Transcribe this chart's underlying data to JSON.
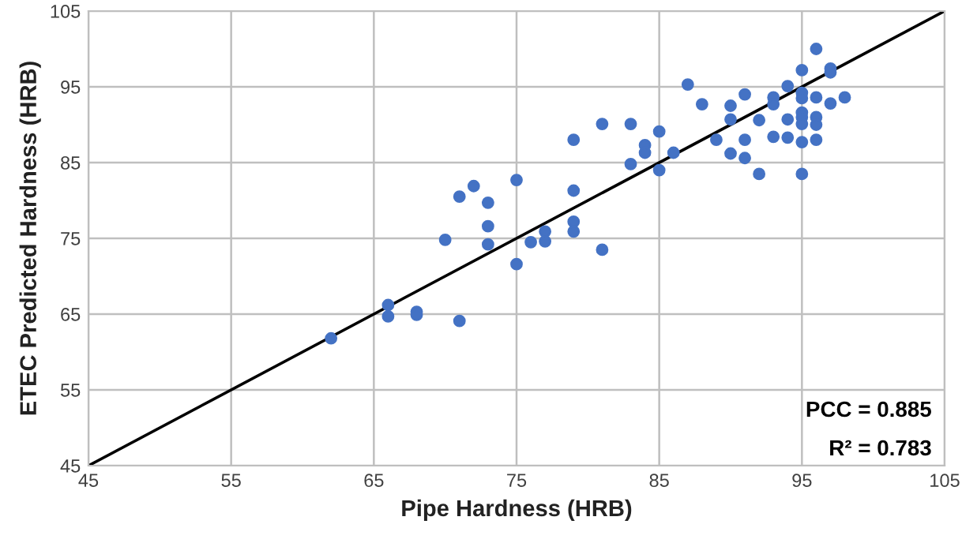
{
  "chart_data": {
    "type": "scatter",
    "xlabel": "Pipe Hardness (HRB)",
    "ylabel": "ETEC Predicted Hardness (HRB)",
    "xlim": [
      45,
      105
    ],
    "ylim": [
      45,
      105
    ],
    "xticks": [
      45,
      55,
      65,
      75,
      85,
      95,
      105
    ],
    "yticks": [
      45,
      55,
      65,
      75,
      85,
      95,
      105
    ],
    "grid": true,
    "marker": "circle",
    "series": [
      {
        "color": "#4472c4",
        "x": [
          62,
          66,
          66,
          68,
          68,
          70,
          71,
          71,
          72,
          73,
          73,
          73,
          75,
          75,
          76,
          77,
          77,
          79,
          79,
          79,
          79,
          81,
          81,
          83,
          83,
          84,
          84,
          85,
          85,
          86,
          87,
          88,
          89,
          90,
          90,
          90,
          91,
          91,
          91,
          92,
          92,
          93,
          93,
          93,
          94,
          94,
          94,
          95,
          95,
          95,
          95,
          95,
          95,
          95,
          95,
          96,
          96,
          96,
          96,
          96,
          97,
          97,
          97,
          98
        ],
        "values": [
          61.8,
          66.2,
          64.7,
          65.3,
          64.9,
          74.8,
          80.5,
          64.1,
          81.9,
          79.7,
          76.6,
          74.2,
          82.7,
          71.6,
          74.5,
          75.9,
          74.6,
          88,
          81.3,
          77.2,
          75.9,
          90.1,
          73.5,
          90.1,
          84.8,
          87.3,
          86.3,
          89.1,
          84,
          86.3,
          95.3,
          92.7,
          88,
          92.5,
          90.7,
          86.2,
          94,
          88,
          85.6,
          90.6,
          83.5,
          93.6,
          92.7,
          88.4,
          95.1,
          90.7,
          88.3,
          97.2,
          94.2,
          93.5,
          91.6,
          91,
          90.1,
          87.7,
          83.5,
          100,
          93.6,
          91,
          90,
          88,
          97.4,
          96.9,
          92.8,
          93.6
        ]
      },
      {
        "type": "line",
        "color": "#000000",
        "x": [
          45,
          105
        ],
        "values": [
          45,
          105
        ],
        "marker": "none",
        "line_style": "solid"
      }
    ],
    "annotations": [
      "PCC = 0.885",
      "R² = 0.783"
    ]
  }
}
